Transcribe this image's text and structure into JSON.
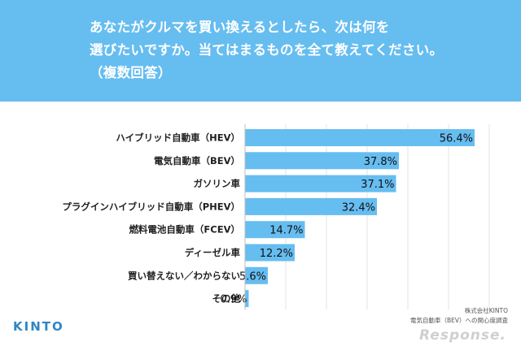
{
  "header": {
    "title_line1": "あなたがクルマを買い換えるとしたら、次は何を",
    "title_line2": "選びたいですか。当てはまるものを全て教えてください。",
    "title_line3": "（複数回答）",
    "background_color": "#66bdf0"
  },
  "chart_data": {
    "type": "bar",
    "orientation": "horizontal",
    "categories": [
      "ハイブリッド自動車（HEV）",
      "電気自動車（BEV）",
      "ガソリン車",
      "プラグインハイブリッド自動車（PHEV）",
      "燃料電池自動車（FCEV）",
      "ディーゼル車",
      "買い替えない／わからない",
      "その他"
    ],
    "values": [
      56.4,
      37.8,
      37.1,
      32.4,
      14.7,
      12.2,
      5.6,
      0.9
    ],
    "value_labels": [
      "56.4%",
      "37.8%",
      "37.1%",
      "32.4%",
      "14.7%",
      "12.2%",
      "5.6%",
      "0.9%"
    ],
    "unit": "%",
    "xlim": [
      0,
      60
    ],
    "grid": true,
    "bar_color": "#66bdf0"
  },
  "footer": {
    "logo": "KINTO",
    "source_line1": "株式会社KINTO",
    "source_line2": "電気自動車（BEV）への関心度調査",
    "watermark": "Response."
  }
}
